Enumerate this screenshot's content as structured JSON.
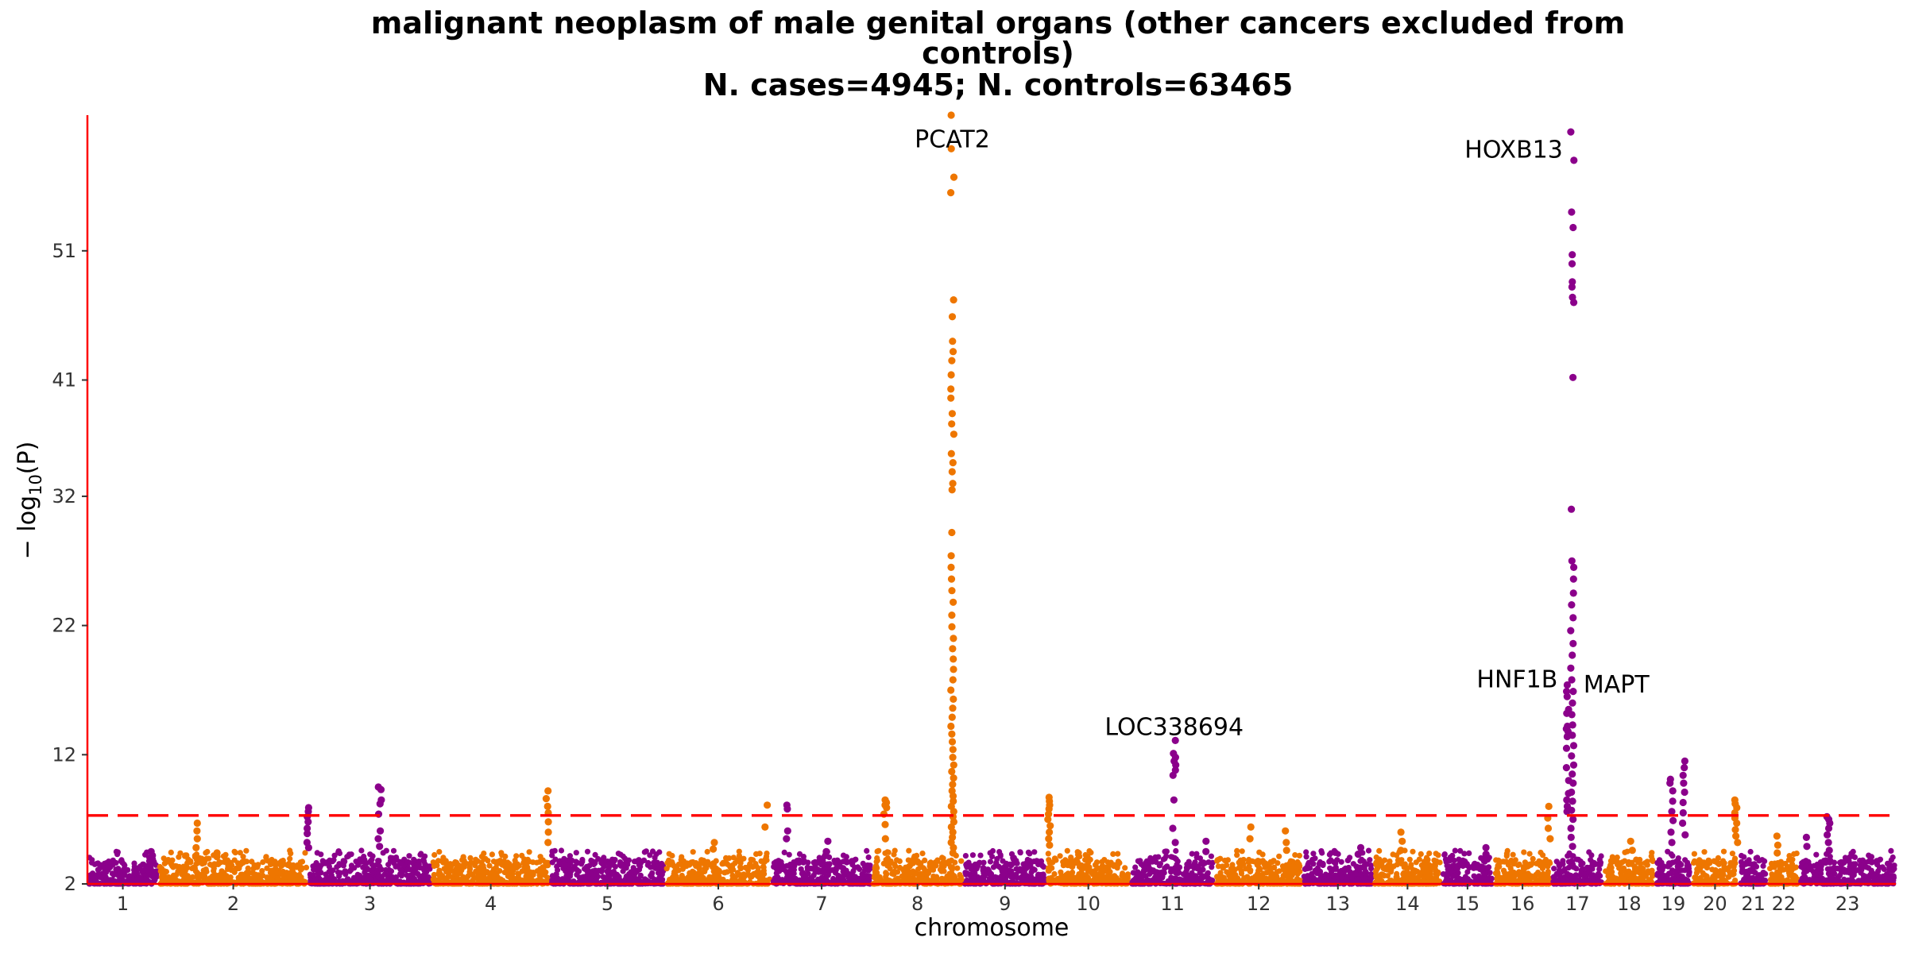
{
  "chart_data": {
    "type": "scatter",
    "subtype": "manhattan",
    "title_lines": [
      "malignant neoplasm of male genital organs (other cancers excluded from",
      "controls)",
      "N. cases=4945; N. controls=63465"
    ],
    "xlabel": "chromosome",
    "ylabel_prefix": "− log",
    "ylabel_subscript": "10",
    "ylabel_suffix": "(P)",
    "ylim": [
      2,
      61.5
    ],
    "yticks": [
      2,
      12,
      22,
      32,
      41,
      51
    ],
    "significance_threshold": 7.3,
    "colors": {
      "odd": "#8B008B",
      "even": "#EE7600",
      "threshold": "#FF0000",
      "axis": "#FF0000"
    },
    "chromosomes": [
      {
        "label": "1",
        "width": 85
      },
      {
        "label": "2",
        "width": 180
      },
      {
        "label": "3",
        "width": 148
      },
      {
        "label": "4",
        "width": 142
      },
      {
        "label": "5",
        "width": 138
      },
      {
        "label": "6",
        "width": 128
      },
      {
        "label": "7",
        "width": 120
      },
      {
        "label": "8",
        "width": 110
      },
      {
        "label": "9",
        "width": 100
      },
      {
        "label": "10",
        "width": 100
      },
      {
        "label": "11",
        "width": 102
      },
      {
        "label": "12",
        "width": 105
      },
      {
        "label": "13",
        "width": 85
      },
      {
        "label": "14",
        "width": 82
      },
      {
        "label": "15",
        "width": 62
      },
      {
        "label": "16",
        "width": 70
      },
      {
        "label": "17",
        "width": 62
      },
      {
        "label": "18",
        "width": 62
      },
      {
        "label": "19",
        "width": 44
      },
      {
        "label": "20",
        "width": 56
      },
      {
        "label": "21",
        "width": 36
      },
      {
        "label": "22",
        "width": 37
      },
      {
        "label": "23",
        "width": 116
      }
    ],
    "peaks": [
      {
        "chrom": "1",
        "pos": 0.9,
        "values": [
          4.5,
          4.2,
          3.9
        ]
      },
      {
        "chrom": "2",
        "pos": 0.25,
        "values": [
          6.7,
          6.1,
          5.5,
          4.8
        ]
      },
      {
        "chrom": "2",
        "pos": 0.4,
        "values": [
          4.4,
          4.1
        ]
      },
      {
        "chrom": "3",
        "pos": 0.0,
        "values": [
          7.9,
          7.6,
          7.2,
          6.8,
          6.3,
          5.9,
          5.2,
          4.8
        ]
      },
      {
        "chrom": "3",
        "pos": 0.58,
        "values": [
          9.5,
          9.3,
          8.5,
          8.2,
          7.4,
          6.1,
          5.5,
          4.9
        ]
      },
      {
        "chrom": "4",
        "pos": 0.98,
        "values": [
          9.2,
          8.6,
          8.0,
          7.5,
          6.8,
          6.0,
          5.2
        ]
      },
      {
        "chrom": "6",
        "pos": 0.45,
        "values": [
          5.2,
          4.7
        ]
      },
      {
        "chrom": "6",
        "pos": 0.95,
        "values": [
          8.1,
          6.4
        ]
      },
      {
        "chrom": "7",
        "pos": 0.15,
        "values": [
          8.1,
          7.8,
          6.1,
          5.5
        ]
      },
      {
        "chrom": "7",
        "pos": 0.55,
        "values": [
          5.3,
          4.5,
          4.2
        ]
      },
      {
        "chrom": "8",
        "pos": 0.15,
        "values": [
          8.5,
          8.3,
          8.1,
          7.9,
          7.4,
          6.6,
          5.5
        ]
      },
      {
        "chrom": "8",
        "pos": 0.88,
        "values": [
          61.5,
          58.9,
          56.7,
          55.5,
          47.2,
          45.9,
          44.0,
          43.2,
          42.5,
          41.4,
          40.3,
          39.6,
          38.4,
          37.6,
          36.8,
          35.3,
          34.6,
          33.9,
          33.0,
          32.5,
          29.2,
          27.4,
          26.5,
          25.6,
          24.7,
          23.8,
          22.8,
          21.9,
          21.0,
          20.2,
          19.4,
          18.6,
          17.8,
          17.0,
          16.3,
          15.6,
          14.9,
          14.2,
          13.6,
          13.0,
          12.4,
          11.8,
          11.2,
          10.7,
          10.2,
          9.7,
          9.2,
          8.8,
          8.4,
          8.0,
          7.6,
          7.2,
          6.8,
          6.4,
          6.0,
          5.6,
          5.2,
          4.8,
          4.4
        ]
      },
      {
        "chrom": "10",
        "pos": 0.03,
        "values": [
          8.7,
          8.4,
          8.1,
          7.8,
          7.4,
          7.0,
          6.5,
          6.0,
          5.5,
          5.0
        ]
      },
      {
        "chrom": "11",
        "pos": 0.52,
        "values": [
          13.1,
          12.1,
          11.8,
          11.5,
          11.2,
          10.8,
          10.4,
          8.5,
          6.3,
          5.2
        ]
      },
      {
        "chrom": "11",
        "pos": 0.9,
        "values": [
          5.3,
          4.5
        ]
      },
      {
        "chrom": "12",
        "pos": 0.4,
        "values": [
          6.4,
          5.5
        ]
      },
      {
        "chrom": "12",
        "pos": 0.82,
        "values": [
          6.1,
          5.2,
          4.6
        ]
      },
      {
        "chrom": "13",
        "pos": 0.8,
        "values": [
          4.8,
          4.3
        ]
      },
      {
        "chrom": "14",
        "pos": 0.4,
        "values": [
          6.0,
          5.3,
          4.6
        ]
      },
      {
        "chrom": "15",
        "pos": 0.85,
        "values": [
          4.8,
          4.3
        ]
      },
      {
        "chrom": "16",
        "pos": 0.95,
        "values": [
          8.0,
          7.1,
          6.3,
          5.5
        ]
      },
      {
        "chrom": "17",
        "pos": 0.3,
        "values": [
          9.0,
          8.5,
          8.0,
          7.6,
          14.2,
          13.8,
          13.4,
          15.5,
          16.9,
          17.4,
          16.5,
          15.2,
          14.0,
          12.5,
          11.0,
          10.0
        ]
      },
      {
        "chrom": "17",
        "pos": 0.4,
        "values": [
          60.2,
          58.0,
          54.0,
          52.8,
          50.7,
          50.0,
          48.6,
          48.2,
          47.4,
          47.0,
          41.2,
          31.0,
          27.0,
          26.5,
          25.6,
          24.5,
          23.6,
          22.6,
          21.6,
          20.6,
          19.7,
          18.7,
          17.8,
          16.9,
          16.0,
          15.1,
          14.3,
          13.5,
          12.7,
          11.9,
          11.2,
          10.5,
          9.8,
          9.1,
          8.4,
          7.7,
          7.0,
          6.3,
          5.6,
          4.9
        ]
      },
      {
        "chrom": "18",
        "pos": 0.55,
        "values": [
          5.3,
          4.6
        ]
      },
      {
        "chrom": "19",
        "pos": 0.45,
        "values": [
          10.1,
          9.8,
          9.2,
          8.4,
          7.6,
          6.9,
          6.0,
          5.2
        ]
      },
      {
        "chrom": "19",
        "pos": 0.78,
        "values": [
          11.5,
          11.0,
          10.4,
          9.8,
          9.1,
          8.3,
          7.5,
          6.7,
          5.8
        ]
      },
      {
        "chrom": "20",
        "pos": 0.95,
        "values": [
          8.5,
          8.2,
          7.9,
          7.5,
          7.1,
          6.7,
          6.2,
          5.7,
          5.2
        ]
      },
      {
        "chrom": "22",
        "pos": 0.3,
        "values": [
          5.7,
          5.0,
          4.4
        ]
      },
      {
        "chrom": "23",
        "pos": 0.08,
        "values": [
          5.6,
          4.9
        ]
      },
      {
        "chrom": "23",
        "pos": 0.3,
        "values": [
          7.2,
          7.0,
          6.7,
          6.3,
          5.8,
          5.2,
          4.6
        ]
      }
    ],
    "annotations": [
      {
        "label": "PCAT2",
        "chrom": "8",
        "pos": 0.88,
        "y": 59.7,
        "anchor": "middle"
      },
      {
        "label": "HOXB13",
        "chrom": "17",
        "pos": 0.4,
        "y": 58.9,
        "anchor": "end"
      },
      {
        "label": "LOC338694",
        "chrom": "11",
        "pos": 0.52,
        "y": 14.2,
        "anchor": "middle"
      },
      {
        "label": "HNF1B",
        "chrom": "17",
        "pos": 0.3,
        "y": 17.9,
        "anchor": "end"
      },
      {
        "label": "MAPT",
        "chrom": "17",
        "pos": 0.4,
        "y": 17.5,
        "anchor": "start"
      }
    ]
  }
}
